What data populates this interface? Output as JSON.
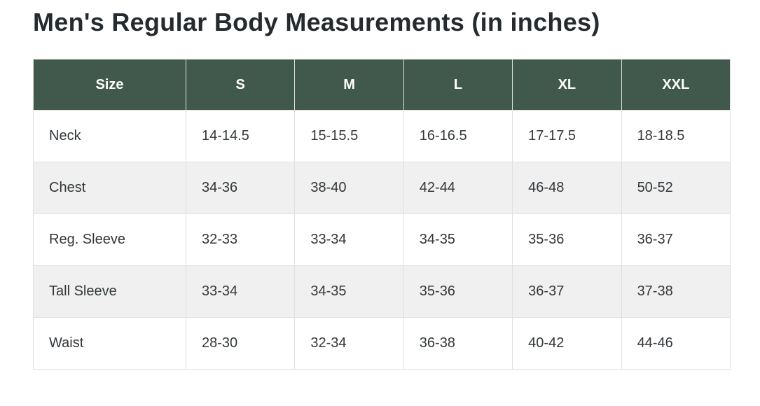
{
  "page": {
    "title": "Men's Regular Body Measurements (in inches)"
  },
  "table": {
    "columns": [
      "Size",
      "S",
      "M",
      "L",
      "XL",
      "XXL"
    ],
    "rows": [
      {
        "label": "Neck",
        "values": [
          "14-14.5",
          "15-15.5",
          "16-16.5",
          "17-17.5",
          "18-18.5"
        ]
      },
      {
        "label": "Chest",
        "values": [
          "34-36",
          "38-40",
          "42-44",
          "46-48",
          "50-52"
        ]
      },
      {
        "label": "Reg. Sleeve",
        "values": [
          "32-33",
          "33-34",
          "34-35",
          "35-36",
          "36-37"
        ]
      },
      {
        "label": "Tall Sleeve",
        "values": [
          "33-34",
          "34-35",
          "35-36",
          "36-37",
          "37-38"
        ]
      },
      {
        "label": "Waist",
        "values": [
          "28-30",
          "32-34",
          "36-38",
          "40-42",
          "44-46"
        ]
      }
    ]
  },
  "colors": {
    "header_bg": "#41594d",
    "header_text": "#ffffff",
    "stripe_bg": "#f0f0f0",
    "border": "#e0e0e0",
    "title_text": "#252a2e",
    "body_text": "#33373a",
    "page_bg": "#ffffff"
  },
  "chart_data": {
    "type": "table",
    "title": "Men's Regular Body Measurements (in inches)",
    "columns": [
      "Size",
      "S",
      "M",
      "L",
      "XL",
      "XXL"
    ],
    "rows": [
      [
        "Neck",
        "14-14.5",
        "15-15.5",
        "16-16.5",
        "17-17.5",
        "18-18.5"
      ],
      [
        "Chest",
        "34-36",
        "38-40",
        "42-44",
        "46-48",
        "50-52"
      ],
      [
        "Reg. Sleeve",
        "32-33",
        "33-34",
        "34-35",
        "35-36",
        "36-37"
      ],
      [
        "Tall Sleeve",
        "33-34",
        "34-35",
        "35-36",
        "36-37",
        "37-38"
      ],
      [
        "Waist",
        "28-30",
        "32-34",
        "36-38",
        "40-42",
        "44-46"
      ]
    ],
    "layout": {
      "stripe_even_rows": true,
      "header_fill": "#41594d",
      "grid": true
    }
  }
}
